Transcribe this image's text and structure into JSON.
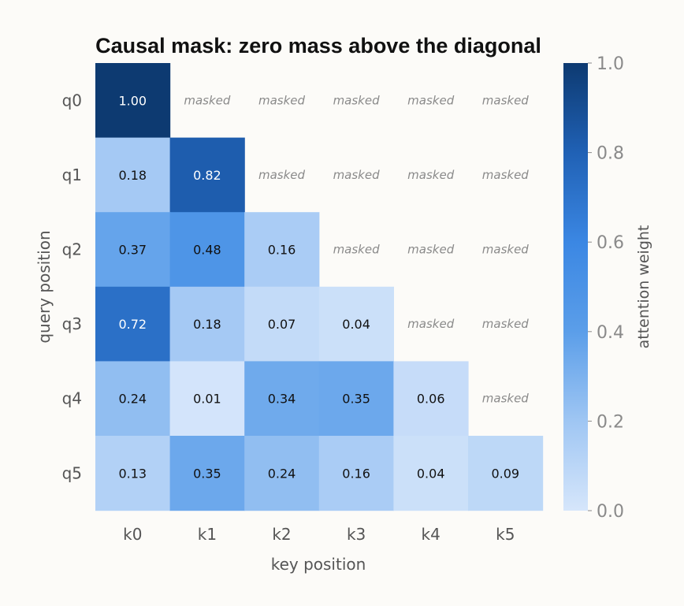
{
  "chart_data": {
    "type": "heatmap",
    "title": "Causal mask: zero mass above the diagonal",
    "xlabel": "key position",
    "ylabel": "query position",
    "x_categories": [
      "k0",
      "k1",
      "k2",
      "k3",
      "k4",
      "k5"
    ],
    "y_categories": [
      "q0",
      "q1",
      "q2",
      "q3",
      "q4",
      "q5"
    ],
    "values": [
      [
        1.0,
        null,
        null,
        null,
        null,
        null
      ],
      [
        0.18,
        0.82,
        null,
        null,
        null,
        null
      ],
      [
        0.37,
        0.48,
        0.16,
        null,
        null,
        null
      ],
      [
        0.72,
        0.18,
        0.07,
        0.04,
        null,
        null
      ],
      [
        0.24,
        0.01,
        0.34,
        0.35,
        0.06,
        null
      ],
      [
        0.13,
        0.35,
        0.24,
        0.16,
        0.04,
        0.09
      ]
    ],
    "masked_label": "masked",
    "value_format": "2 decimals",
    "colorbar": {
      "label": "attention weight",
      "range": [
        0.0,
        1.0
      ],
      "ticks": [
        "0.0",
        "0.2",
        "0.4",
        "0.6",
        "0.8",
        "1.0"
      ],
      "colors": [
        "#d6e6fb",
        "#9fc6f3",
        "#5b9ee9",
        "#3b87e3",
        "#2061b5",
        "#0d3a71"
      ]
    }
  }
}
